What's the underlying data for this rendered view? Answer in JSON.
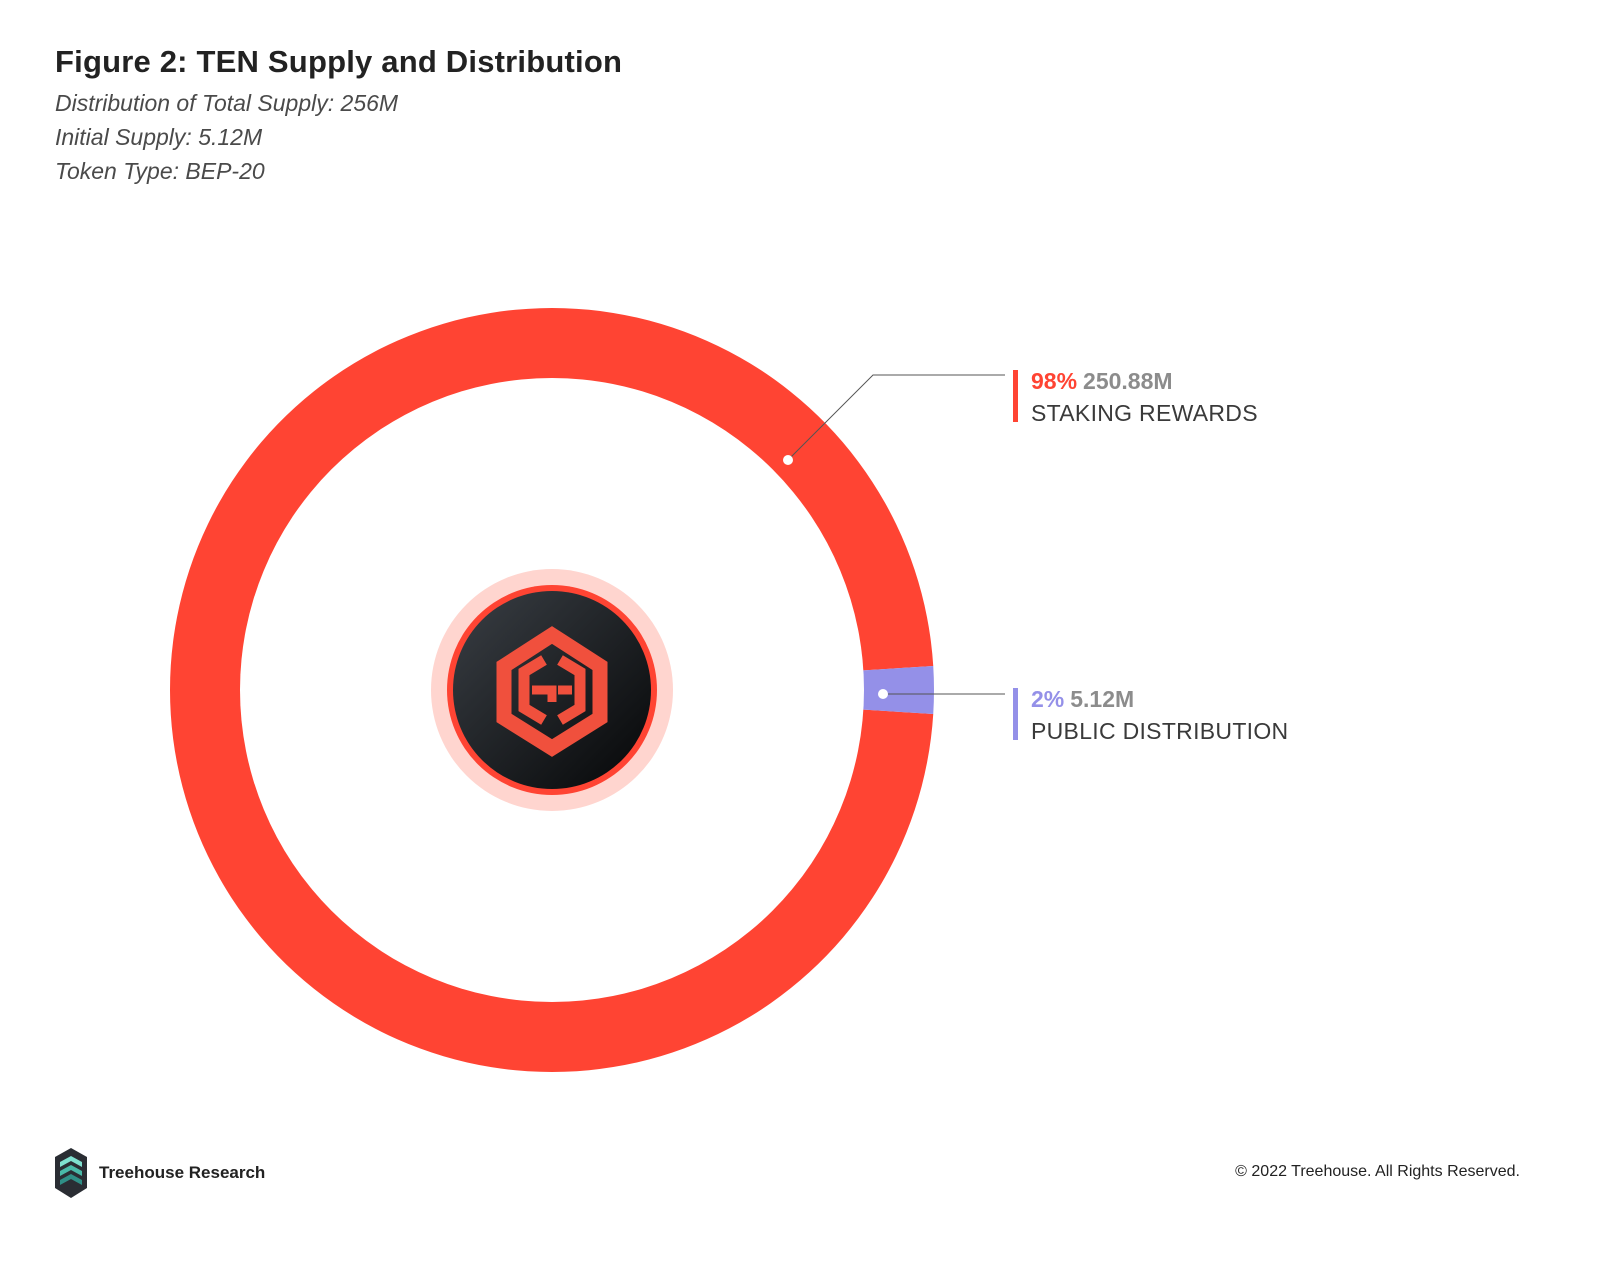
{
  "header": {
    "title": "Figure 2: TEN Supply and Distribution",
    "lines": [
      "Distribution of Total Supply: 256M",
      "Initial Supply: 5.12M",
      "Token Type: BEP-20"
    ]
  },
  "chart_data": {
    "type": "pie",
    "style": "donut",
    "slices": [
      {
        "name": "STAKING REWARDS",
        "percent": 98,
        "amount": "250.88M",
        "percent_label": "98%",
        "color": "#ff4433",
        "light_color": "#ffc8c0"
      },
      {
        "name": "PUBLIC DISTRIBUTION",
        "percent": 2,
        "amount": "5.12M",
        "percent_label": "2%",
        "color": "#9490e8",
        "light_color": "#dcdcf6"
      }
    ],
    "center_icon": "ten-token-logo-icon"
  },
  "footer": {
    "brand": "Treehouse Research",
    "brand_icon": "treehouse-logo-icon",
    "copyright": "© 2022 Treehouse. All Rights Reserved."
  }
}
